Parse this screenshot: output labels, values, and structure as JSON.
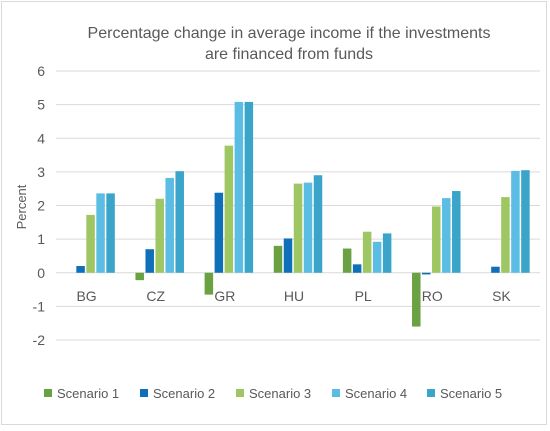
{
  "chart_data": {
    "type": "bar",
    "title": "Percentage change in average income if the investments are financed from funds",
    "title_lines": [
      "Percentage change in average income if the investments",
      "are financed from funds"
    ],
    "xlabel": "",
    "ylabel": "Percent",
    "ylim": [
      -2,
      6
    ],
    "yticks": [
      -2,
      -1,
      0,
      1,
      2,
      3,
      4,
      5,
      6
    ],
    "ytick_labels": [
      "-2",
      "-1",
      "0",
      "1",
      "2",
      "3",
      "4",
      "5",
      "6"
    ],
    "grid": "horizontal",
    "legend_position": "bottom",
    "categories": [
      "BG",
      "CZ",
      "GR",
      "HU",
      "PL",
      "RO",
      "SK"
    ],
    "series": [
      {
        "name": "Scenario 1",
        "color": "#6aa142",
        "values": [
          0.0,
          -0.22,
          -0.65,
          0.8,
          0.72,
          -1.6,
          0.0
        ]
      },
      {
        "name": "Scenario 2",
        "color": "#0f6fb8",
        "values": [
          0.2,
          0.7,
          2.38,
          1.02,
          0.25,
          -0.05,
          0.18
        ]
      },
      {
        "name": "Scenario 3",
        "color": "#9ec763",
        "values": [
          1.72,
          2.2,
          3.78,
          2.65,
          1.22,
          1.97,
          2.25
        ]
      },
      {
        "name": "Scenario 4",
        "color": "#5bbde3",
        "values": [
          2.36,
          2.82,
          5.08,
          2.68,
          0.92,
          2.22,
          3.03
        ]
      },
      {
        "name": "Scenario 5",
        "color": "#3aa5c8",
        "values": [
          2.36,
          3.02,
          5.08,
          2.9,
          1.17,
          2.43,
          3.05
        ]
      }
    ]
  }
}
